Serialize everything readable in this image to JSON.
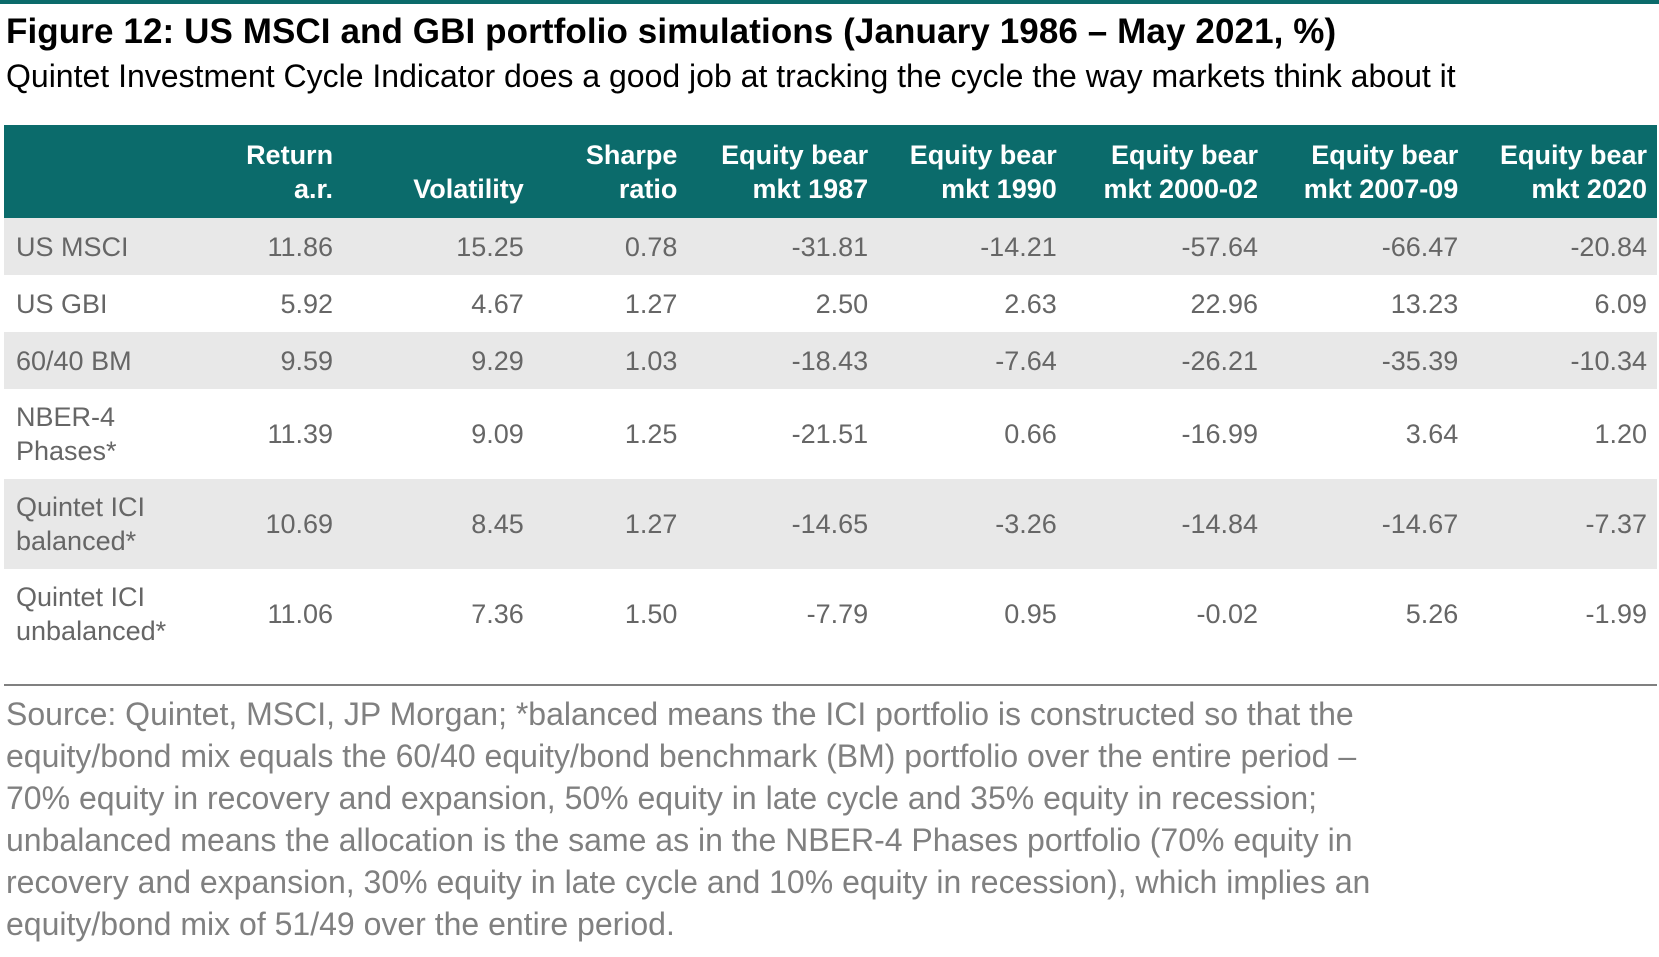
{
  "title": "Figure 12: US MSCI and GBI portfolio simulations (January 1986 – May 2021, %)",
  "subtitle": "Quintet Investment Cycle Indicator does a good job at tracking the cycle the way markets think about it",
  "table": {
    "headers": [
      [
        "",
        ""
      ],
      [
        "Return",
        "a.r."
      ],
      [
        "",
        "Volatility"
      ],
      [
        "Sharpe",
        "ratio"
      ],
      [
        "Equity bear",
        "mkt 1987"
      ],
      [
        "Equity bear",
        "mkt 1990"
      ],
      [
        "Equity bear",
        "mkt 2000-02"
      ],
      [
        "Equity bear",
        "mkt 2007-09"
      ],
      [
        "Equity bear",
        "mkt 2020"
      ]
    ],
    "rows": [
      {
        "label": [
          "US MSCI"
        ],
        "values": [
          "11.86",
          "15.25",
          "0.78",
          "-31.81",
          "-14.21",
          "-57.64",
          "-66.47",
          "-20.84"
        ]
      },
      {
        "label": [
          "US GBI"
        ],
        "values": [
          "5.92",
          "4.67",
          "1.27",
          "2.50",
          "2.63",
          "22.96",
          "13.23",
          "6.09"
        ]
      },
      {
        "label": [
          "60/40 BM"
        ],
        "values": [
          "9.59",
          "9.29",
          "1.03",
          "-18.43",
          "-7.64",
          "-26.21",
          "-35.39",
          "-10.34"
        ]
      },
      {
        "label": [
          "NBER-4",
          "Phases*"
        ],
        "values": [
          "11.39",
          "9.09",
          "1.25",
          "-21.51",
          "0.66",
          "-16.99",
          "3.64",
          "1.20"
        ]
      },
      {
        "label": [
          "Quintet ICI",
          "balanced*"
        ],
        "values": [
          "10.69",
          "8.45",
          "1.27",
          "-14.65",
          "-3.26",
          "-14.84",
          "-14.67",
          "-7.37"
        ]
      },
      {
        "label": [
          "Quintet ICI",
          "unbalanced*"
        ],
        "values": [
          "11.06",
          "7.36",
          "1.50",
          "-7.79",
          "0.95",
          "-0.02",
          "5.26",
          "-1.99"
        ]
      }
    ]
  },
  "source_lines": [
    "Source: Quintet, MSCI, JP Morgan; *balanced means the ICI portfolio is constructed so that the",
    "equity/bond mix equals the 60/40 equity/bond benchmark (BM) portfolio over the entire period –",
    "70% equity in recovery and expansion, 50% equity in late cycle and 35% equity in recession;",
    "unbalanced means the allocation is the same as in the NBER-4 Phases portfolio (70% equity in",
    "recovery and expansion, 30% equity in late cycle and 10% equity in recession), which implies an",
    "equity/bond mix of 51/49 over the entire period."
  ],
  "colors": {
    "accent": "#0b6b6b",
    "row_shade": "#e8e8e8",
    "body_text": "#666666",
    "source_text": "#808080"
  }
}
